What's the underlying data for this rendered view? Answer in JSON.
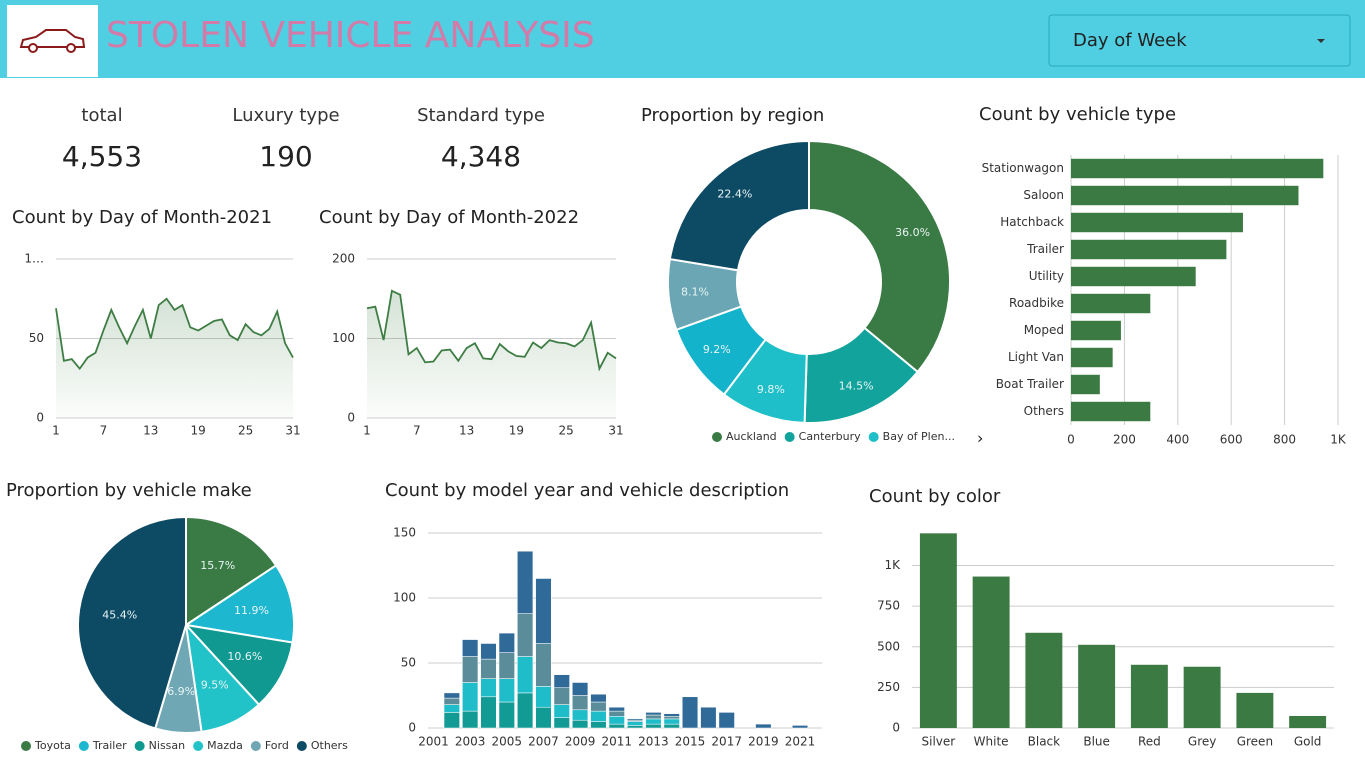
{
  "header": {
    "title": "STOLEN VEHICLE ANALYSIS",
    "dropdown": "Day of Week"
  },
  "kpis": [
    {
      "label": "total",
      "value": "4,553"
    },
    {
      "label": "Luxury type",
      "value": "190"
    },
    {
      "label": "Standard type",
      "value": "4,348"
    }
  ],
  "chart_data": [
    {
      "type": "line",
      "title": "Count by Day of Month-2021",
      "color": "#3e7d44",
      "grid": true,
      "x": [
        1,
        2,
        3,
        4,
        5,
        6,
        7,
        8,
        9,
        10,
        11,
        12,
        13,
        14,
        15,
        16,
        17,
        18,
        19,
        20,
        21,
        22,
        23,
        24,
        25,
        26,
        27,
        28,
        29,
        30,
        31
      ],
      "values": [
        69,
        36,
        37,
        31,
        38,
        41,
        55,
        68,
        57,
        47,
        58,
        68,
        50,
        71,
        75,
        68,
        71,
        57,
        55,
        58,
        61,
        62,
        52,
        49,
        59,
        54,
        52,
        56,
        67,
        47,
        38
      ],
      "xlim": [
        1,
        31
      ],
      "xticks": [
        1,
        7,
        13,
        19,
        25,
        31
      ],
      "ylim": [
        0,
        100
      ],
      "yticks": [
        0,
        50,
        {
          "value": 100,
          "label": "1…"
        }
      ]
    },
    {
      "type": "line",
      "title": "Count by Day of Month-2022",
      "color": "#3e7d44",
      "grid": true,
      "x": [
        1,
        2,
        3,
        4,
        5,
        6,
        7,
        8,
        9,
        10,
        11,
        12,
        13,
        14,
        15,
        16,
        17,
        18,
        19,
        20,
        21,
        22,
        23,
        24,
        25,
        26,
        27,
        28,
        29,
        30,
        31
      ],
      "values": [
        138,
        140,
        98,
        160,
        155,
        80,
        88,
        70,
        71,
        85,
        86,
        72,
        88,
        94,
        75,
        74,
        93,
        84,
        78,
        77,
        95,
        88,
        98,
        95,
        94,
        90,
        98,
        120,
        62,
        82,
        75
      ],
      "xlim": [
        1,
        31
      ],
      "xticks": [
        1,
        7,
        13,
        19,
        25,
        31
      ],
      "ylim": [
        0,
        200
      ],
      "yticks": [
        0,
        100,
        200
      ]
    },
    {
      "type": "donut",
      "title": "Proportion by region",
      "categories": [
        "Auckland",
        "Canterbury",
        "Bay of Plen...",
        null,
        null,
        null
      ],
      "values": [
        36.0,
        14.5,
        9.8,
        9.2,
        8.1,
        22.4
      ],
      "value_labels": [
        "36.0%",
        "14.5%",
        "9.8%",
        "9.2%",
        "8.1%",
        "22.4%"
      ],
      "colors": [
        "#3a7a45",
        "#12a39c",
        "#1ebfc9",
        "#14b3cc",
        "#6aa6b3",
        "#0d4a63"
      ]
    },
    {
      "type": "hbar",
      "title": "Count by vehicle type",
      "color": "#3b7a43",
      "grid": true,
      "categories": [
        "Stationwagon",
        "Saloon",
        "Hatchback",
        "Trailer",
        "Utility",
        "Roadbike",
        "Moped",
        "Light Van",
        "Boat Trailer",
        "Others"
      ],
      "values": [
        945,
        852,
        644,
        582,
        467,
        297,
        187,
        156,
        108,
        297
      ],
      "xlim": [
        0,
        1000
      ],
      "xticks": [
        0,
        200,
        400,
        600,
        800,
        {
          "value": 1000,
          "label": "1K"
        }
      ]
    },
    {
      "type": "pie",
      "title": "Proportion by vehicle make",
      "categories": [
        "Toyota",
        "Trailer",
        "Nissan",
        "Mazda",
        "Ford",
        "Others"
      ],
      "values": [
        15.7,
        11.9,
        10.6,
        9.5,
        6.9,
        45.4
      ],
      "value_labels": [
        "15.7%",
        "11.9%",
        "10.6%",
        "9.5%",
        "6.9%",
        "45.4%"
      ],
      "colors": [
        "#3a7a45",
        "#1db7d0",
        "#0f9990",
        "#22c3c8",
        "#6fa7b4",
        "#0d4a63"
      ]
    },
    {
      "type": "stacked",
      "title": "Count by model year and vehicle description",
      "grid": true,
      "x": [
        2002,
        2003,
        2004,
        2005,
        2006,
        2007,
        2008,
        2009,
        2010,
        2011,
        2012,
        2013,
        2014,
        2015,
        2016,
        2017,
        2019,
        2021
      ],
      "series": [
        {
          "color": "#129a95",
          "values": [
            12,
            13,
            24,
            20,
            27,
            16,
            8,
            6,
            5,
            3,
            2,
            3,
            3,
            0,
            0,
            0,
            0,
            0
          ]
        },
        {
          "color": "#1fbdc9",
          "values": [
            6,
            22,
            14,
            18,
            28,
            16,
            10,
            8,
            8,
            6,
            3,
            4,
            4,
            0,
            0,
            0,
            0,
            0
          ]
        },
        {
          "color": "#5a8c99",
          "values": [
            5,
            20,
            15,
            20,
            33,
            33,
            13,
            11,
            7,
            4,
            1,
            3,
            2,
            0,
            0,
            0,
            0,
            0
          ]
        },
        {
          "color": "#2f6a98",
          "values": [
            4,
            13,
            12,
            15,
            48,
            50,
            10,
            10,
            6,
            3,
            1,
            2,
            2,
            24,
            16,
            12,
            3,
            2
          ]
        }
      ],
      "xlim": [
        2000.7,
        2022.2
      ],
      "xticks": [
        2001,
        2003,
        2005,
        2007,
        2009,
        2011,
        2013,
        2015,
        2017,
        2019,
        2021
      ],
      "ylim": [
        0,
        150
      ],
      "yticks": [
        0,
        50,
        100,
        150
      ]
    },
    {
      "type": "bar",
      "title": "Count by color",
      "color": "#3b7a43",
      "grid": true,
      "categories": [
        "Silver",
        "White",
        "Black",
        "Blue",
        "Red",
        "Grey",
        "Green",
        "Gold"
      ],
      "values": [
        1198,
        932,
        586,
        512,
        389,
        377,
        216,
        74
      ],
      "ylim": [
        0,
        1200
      ],
      "yticks": [
        0,
        250,
        500,
        750,
        {
          "value": 1000,
          "label": "1K"
        }
      ]
    }
  ]
}
